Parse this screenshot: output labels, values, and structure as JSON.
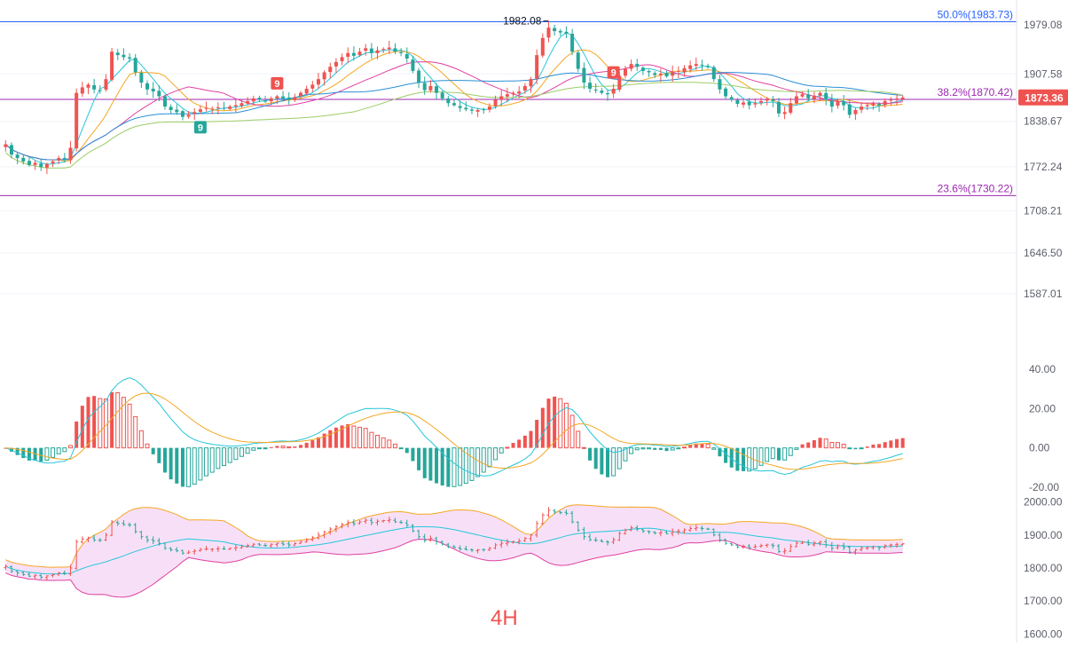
{
  "timeframe": "4H",
  "colors": {
    "up": "#ef5350",
    "down": "#26a69a",
    "ma_fast": "#26c6da",
    "ma_mid": "#f5a623",
    "ma_slow": "#e040a0",
    "ma_slower": "#2a8fd6",
    "ma_slowest": "#9ccc65",
    "fib_50": "#2962ff",
    "fib_382": "#9c27b0",
    "fib_236": "#9c27b0",
    "macd_dif": "#26c6da",
    "macd_dea": "#f5a623",
    "boll_upper": "#f5a623",
    "boll_mid": "#26c6da",
    "boll_lower": "#e040a0",
    "boll_fill": "#f3d3f3"
  },
  "chart_data": [
    {
      "type": "candlestick",
      "y_ticks": [
        "1979.08",
        "1907.58",
        "1838.67",
        "1772.24",
        "1708.21",
        "1646.50",
        "1587.01"
      ],
      "ylim": [
        1560,
        2005
      ],
      "last_price": "1873.36",
      "high_marker": "1982.08",
      "fib_levels": [
        {
          "label": "50.0%(1983.73)",
          "value": 1983.73
        },
        {
          "label": "38.2%(1870.42)",
          "value": 1870.42
        },
        {
          "label": "23.6%(1730.22)",
          "value": 1730.22
        }
      ],
      "td_markers": [
        {
          "text": "9",
          "index": 46,
          "kind": "up"
        },
        {
          "text": "9",
          "index": 33,
          "kind": "down"
        },
        {
          "text": "9",
          "index": 103,
          "kind": "up"
        }
      ],
      "closes": [
        1805,
        1790,
        1785,
        1780,
        1775,
        1778,
        1772,
        1776,
        1780,
        1785,
        1783,
        1800,
        1880,
        1888,
        1892,
        1885,
        1884,
        1900,
        1940,
        1935,
        1932,
        1930,
        1910,
        1895,
        1885,
        1882,
        1875,
        1860,
        1855,
        1852,
        1845,
        1848,
        1852,
        1856,
        1858,
        1857,
        1859,
        1858,
        1860,
        1862,
        1865,
        1868,
        1872,
        1870,
        1868,
        1872,
        1875,
        1872,
        1870,
        1874,
        1880,
        1886,
        1892,
        1900,
        1910,
        1918,
        1925,
        1932,
        1938,
        1934,
        1940,
        1945,
        1938,
        1942,
        1944,
        1946,
        1940,
        1938,
        1930,
        1912,
        1895,
        1884,
        1890,
        1880,
        1872,
        1865,
        1862,
        1858,
        1856,
        1854,
        1855,
        1856,
        1860,
        1870,
        1875,
        1878,
        1880,
        1882,
        1890,
        1900,
        1935,
        1960,
        1975,
        1970,
        1968,
        1966,
        1940,
        1915,
        1895,
        1886,
        1884,
        1880,
        1878,
        1886,
        1905,
        1915,
        1922,
        1918,
        1912,
        1910,
        1906,
        1908,
        1904,
        1910,
        1912,
        1916,
        1920,
        1922,
        1920,
        1918,
        1900,
        1885,
        1875,
        1870,
        1864,
        1866,
        1862,
        1865,
        1868,
        1870,
        1868,
        1850,
        1852,
        1865,
        1875,
        1878,
        1872,
        1876,
        1880,
        1870,
        1860,
        1868,
        1862,
        1848,
        1855,
        1860,
        1862,
        1865,
        1862,
        1868,
        1870,
        1872,
        1873.36
      ]
    },
    {
      "type": "macd",
      "y_ticks": [
        "40.00",
        "20.00",
        "0.00",
        "-20.00"
      ],
      "ylim": [
        -25,
        45
      ]
    },
    {
      "type": "bollinger",
      "y_ticks": [
        "2000.00",
        "1900.00",
        "1800.00",
        "1700.00",
        "1600.00"
      ],
      "ylim": [
        1590,
        2010
      ]
    }
  ]
}
